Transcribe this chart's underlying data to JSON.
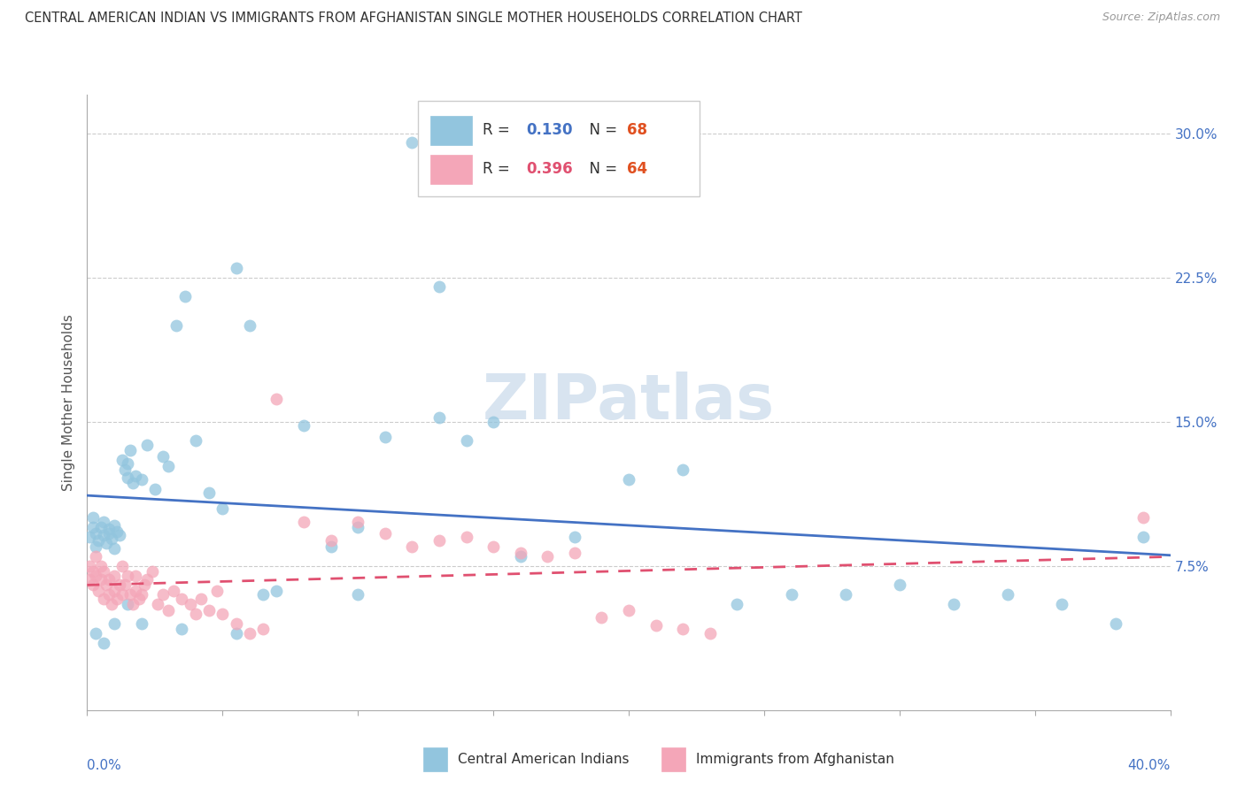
{
  "title": "CENTRAL AMERICAN INDIAN VS IMMIGRANTS FROM AFGHANISTAN SINGLE MOTHER HOUSEHOLDS CORRELATION CHART",
  "source": "Source: ZipAtlas.com",
  "ylabel": "Single Mother Households",
  "xlabel_blue": "Central American Indians",
  "xlabel_pink": "Immigrants from Afghanistan",
  "xlim": [
    0.0,
    0.4
  ],
  "ylim": [
    0.0,
    0.32
  ],
  "R_blue": 0.13,
  "N_blue": 68,
  "R_pink": 0.396,
  "N_pink": 64,
  "color_blue": "#92c5de",
  "color_pink": "#f4a6b8",
  "line_color_blue": "#4472c4",
  "line_color_pink": "#e05070",
  "text_color_blue": "#4472c4",
  "text_color_n": "#e05020",
  "watermark_color": "#d8e4f0",
  "blue_points_x": [
    0.001,
    0.002,
    0.002,
    0.003,
    0.003,
    0.004,
    0.005,
    0.006,
    0.006,
    0.007,
    0.008,
    0.008,
    0.009,
    0.01,
    0.01,
    0.011,
    0.012,
    0.013,
    0.014,
    0.015,
    0.015,
    0.016,
    0.017,
    0.018,
    0.02,
    0.022,
    0.025,
    0.028,
    0.03,
    0.033,
    0.036,
    0.04,
    0.045,
    0.05,
    0.055,
    0.06,
    0.065,
    0.07,
    0.08,
    0.09,
    0.1,
    0.11,
    0.12,
    0.13,
    0.14,
    0.15,
    0.16,
    0.18,
    0.2,
    0.22,
    0.24,
    0.26,
    0.28,
    0.3,
    0.32,
    0.34,
    0.36,
    0.38,
    0.39,
    0.015,
    0.003,
    0.006,
    0.01,
    0.02,
    0.035,
    0.055,
    0.1,
    0.13
  ],
  "blue_points_y": [
    0.09,
    0.095,
    0.1,
    0.085,
    0.092,
    0.088,
    0.095,
    0.091,
    0.098,
    0.087,
    0.094,
    0.092,
    0.089,
    0.096,
    0.084,
    0.093,
    0.091,
    0.13,
    0.125,
    0.128,
    0.121,
    0.135,
    0.118,
    0.122,
    0.12,
    0.138,
    0.115,
    0.132,
    0.127,
    0.2,
    0.215,
    0.14,
    0.113,
    0.105,
    0.23,
    0.2,
    0.06,
    0.062,
    0.148,
    0.085,
    0.095,
    0.142,
    0.295,
    0.22,
    0.14,
    0.15,
    0.08,
    0.09,
    0.12,
    0.125,
    0.055,
    0.06,
    0.06,
    0.065,
    0.055,
    0.06,
    0.055,
    0.045,
    0.09,
    0.055,
    0.04,
    0.035,
    0.045,
    0.045,
    0.042,
    0.04,
    0.06,
    0.152
  ],
  "pink_points_x": [
    0.001,
    0.001,
    0.002,
    0.002,
    0.003,
    0.003,
    0.004,
    0.005,
    0.005,
    0.006,
    0.006,
    0.007,
    0.008,
    0.008,
    0.009,
    0.01,
    0.01,
    0.011,
    0.012,
    0.013,
    0.013,
    0.014,
    0.015,
    0.016,
    0.017,
    0.018,
    0.018,
    0.019,
    0.02,
    0.021,
    0.022,
    0.024,
    0.026,
    0.028,
    0.03,
    0.032,
    0.035,
    0.038,
    0.04,
    0.042,
    0.045,
    0.048,
    0.05,
    0.055,
    0.06,
    0.065,
    0.07,
    0.08,
    0.09,
    0.1,
    0.11,
    0.12,
    0.13,
    0.14,
    0.15,
    0.16,
    0.17,
    0.18,
    0.19,
    0.2,
    0.21,
    0.22,
    0.23,
    0.39
  ],
  "pink_points_y": [
    0.075,
    0.068,
    0.072,
    0.065,
    0.08,
    0.07,
    0.062,
    0.075,
    0.068,
    0.058,
    0.072,
    0.065,
    0.06,
    0.068,
    0.055,
    0.062,
    0.07,
    0.058,
    0.065,
    0.075,
    0.06,
    0.065,
    0.07,
    0.06,
    0.055,
    0.062,
    0.07,
    0.058,
    0.06,
    0.065,
    0.068,
    0.072,
    0.055,
    0.06,
    0.052,
    0.062,
    0.058,
    0.055,
    0.05,
    0.058,
    0.052,
    0.062,
    0.05,
    0.045,
    0.04,
    0.042,
    0.162,
    0.098,
    0.088,
    0.098,
    0.092,
    0.085,
    0.088,
    0.09,
    0.085,
    0.082,
    0.08,
    0.082,
    0.048,
    0.052,
    0.044,
    0.042,
    0.04,
    0.1
  ]
}
